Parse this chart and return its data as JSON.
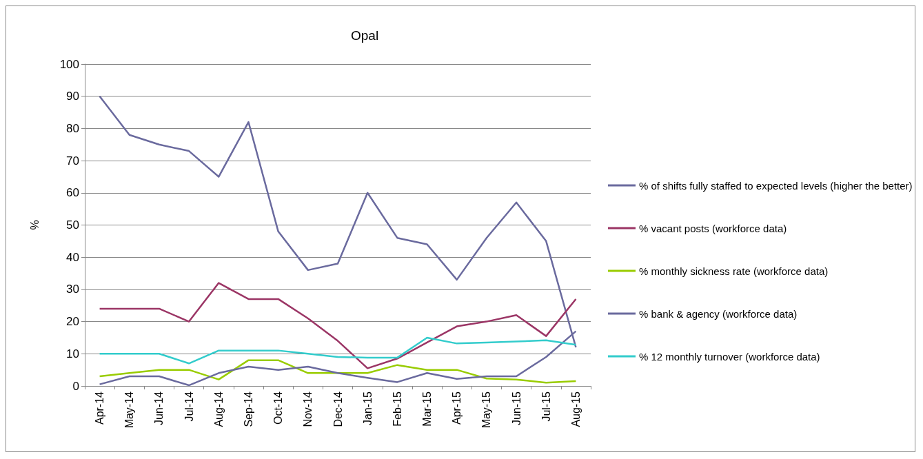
{
  "chart_data": {
    "type": "line",
    "title": "Opal",
    "ylabel": "%",
    "categories": [
      "Apr-14",
      "May-14",
      "Jun-14",
      "Jul-14",
      "Aug-14",
      "Sep-14",
      "Oct-14",
      "Nov-14",
      "Dec-14",
      "Jan-15",
      "Feb-15",
      "Mar-15",
      "Apr-15",
      "May-15",
      "Jun-15",
      "Jul-15",
      "Aug-15"
    ],
    "series": [
      {
        "name": "% of shifts fully staffed to expected levels (higher the better)",
        "color": "#6a6a9e",
        "values": [
          90,
          78,
          75,
          73,
          65,
          82,
          48,
          36,
          38,
          60,
          46,
          44,
          33,
          46,
          57,
          45,
          12
        ]
      },
      {
        "name": "% vacant posts (workforce data)",
        "color": "#9b3565",
        "values": [
          24,
          24,
          24,
          20,
          32,
          27,
          27,
          21,
          14,
          5.5,
          8.5,
          13.5,
          18.5,
          20,
          22,
          15.5,
          27
        ]
      },
      {
        "name": "% monthly sickness rate (workforce data)",
        "color": "#99cc00",
        "values": [
          3,
          4,
          5,
          5,
          2,
          8,
          8,
          4,
          4,
          4,
          6.5,
          5,
          5,
          2.3,
          2,
          1,
          1.5
        ]
      },
      {
        "name": " % bank & agency (workforce data)",
        "color": "#6a6a9e",
        "values": [
          0.5,
          3,
          3,
          0.2,
          4,
          6,
          5,
          6,
          4,
          2.5,
          1.2,
          4,
          2.2,
          3,
          3,
          9,
          17
        ]
      },
      {
        "name": "% 12 monthly turnover (workforce data)",
        "color": "#33cccc",
        "values": [
          10,
          10,
          10,
          7,
          11,
          11,
          11,
          10,
          9,
          8.8,
          8.8,
          15,
          13.2,
          13.5,
          13.8,
          14.2,
          12.8
        ]
      }
    ],
    "ylim": [
      0,
      100
    ],
    "yticks": [
      0,
      10,
      20,
      30,
      40,
      50,
      60,
      70,
      80,
      90,
      100
    ],
    "grid": "y",
    "legend": "right",
    "marker": "none",
    "line_style": "solid"
  }
}
